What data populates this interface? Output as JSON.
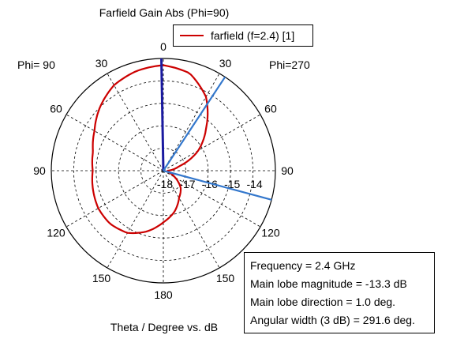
{
  "chart_data": {
    "type": "polar",
    "title": "Farfield Gain Abs (Phi=90)",
    "xlabel": "Theta / Degree vs. dB",
    "phi_left_label": "Phi= 90",
    "phi_right_label": "Phi=270",
    "angle_tick_labels": [
      "0",
      "30",
      "60",
      "90",
      "120",
      "150",
      "180",
      "150",
      "120",
      "90",
      "60",
      "30"
    ],
    "radial_tick_labels": [
      "-18",
      "-17",
      "-16",
      "-15",
      "-14"
    ],
    "radial_range_db": [
      -18,
      -13
    ],
    "grid": true,
    "legend_position": "top-right",
    "series": [
      {
        "name": "farfield (f=2.4) [1]",
        "color": "#cc0000",
        "theta_deg": [
          0,
          15,
          30,
          45,
          60,
          75,
          90,
          105,
          120,
          135,
          150,
          165,
          180,
          195,
          210,
          225,
          240,
          255,
          270,
          285,
          300,
          315,
          330,
          345,
          360
        ],
        "gain_db": [
          -13.3,
          -13.4,
          -13.6,
          -14.0,
          -14.45,
          -14.75,
          -14.85,
          -14.75,
          -14.65,
          -14.65,
          -14.8,
          -15.2,
          -15.7,
          -16.1,
          -16.6,
          -16.9,
          -17.4,
          -17.8,
          -17.8,
          -17.3,
          -16.2,
          -15.3,
          -14.2,
          -13.5,
          -13.3
        ]
      }
    ],
    "markers": [
      {
        "name": "main lobe direction",
        "theta_deg": 1.0,
        "color": "#1a1aa0"
      },
      {
        "name": "3 dB angular width limit 1",
        "theta_deg": 255.0,
        "color": "#3377cc"
      },
      {
        "name": "3 dB angular width limit 2",
        "theta_deg": 326.6,
        "color": "#3377cc"
      }
    ]
  },
  "info_box": {
    "frequency": "Frequency = 2.4 GHz",
    "magnitude": "Main lobe magnitude =    -13.3 dB",
    "direction": "Main lobe direction =     1.0 deg.",
    "width": "Angular width (3 dB) =  291.6 deg."
  }
}
